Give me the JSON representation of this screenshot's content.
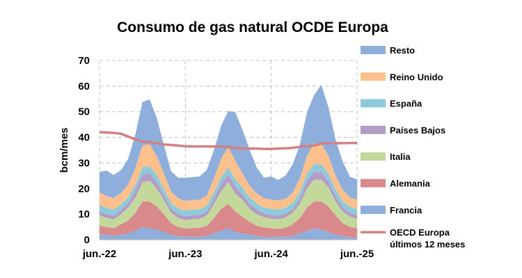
{
  "chart_data": {
    "type": "area",
    "title": "Consumo de gas natural OCDE Europa",
    "xlabel": "",
    "ylabel": "bcm/mes",
    "ylim": [
      0,
      70
    ],
    "yticks": [
      0,
      10,
      20,
      30,
      40,
      50,
      60,
      70
    ],
    "xticks": [
      {
        "index": 0,
        "label": "jun.-22"
      },
      {
        "index": 12,
        "label": "jun.-23"
      },
      {
        "index": 24,
        "label": "jun.-24"
      },
      {
        "index": 36,
        "label": "jun.-25"
      }
    ],
    "grid": true,
    "legend_position": "right",
    "x": [
      "jun.-22",
      "jul.-22",
      "ago.-22",
      "sep.-22",
      "oct.-22",
      "nov.-22",
      "dic.-22",
      "ene.-23",
      "feb.-23",
      "mar.-23",
      "abr.-23",
      "may.-23",
      "jun.-23",
      "jul.-23",
      "ago.-23",
      "sep.-23",
      "oct.-23",
      "nov.-23",
      "dic.-23",
      "ene.-24",
      "feb.-24",
      "mar.-24",
      "abr.-24",
      "may.-24",
      "jun.-24",
      "jul.-24",
      "ago.-24",
      "sep.-24",
      "oct.-24",
      "nov.-24",
      "dic.-24",
      "ene.-25",
      "feb.-25",
      "mar.-25",
      "abr.-25",
      "may.-25",
      "jun.-25"
    ],
    "stack_order": "bottom-to-top",
    "series": [
      {
        "name": "Francia",
        "color": "#8eaedc",
        "values": [
          2,
          2,
          1.5,
          2,
          2.5,
          3.5,
          5,
          4.5,
          4,
          3,
          2,
          1.5,
          1.2,
          1.2,
          1.2,
          1.5,
          2.5,
          3.5,
          4.5,
          3,
          2.5,
          2,
          1.5,
          1,
          1.2,
          1,
          1.2,
          1.5,
          2.5,
          3.5,
          4.5,
          4,
          3,
          2,
          1.5,
          1,
          1
        ]
      },
      {
        "name": "Alemania",
        "color": "#d9898b",
        "values": [
          3.5,
          3,
          3,
          4,
          5,
          7,
          10,
          10.5,
          9,
          7,
          4.5,
          3.5,
          3.2,
          3.3,
          3.5,
          4,
          6,
          8.5,
          9.5,
          8,
          6.5,
          5,
          4,
          3.8,
          3.3,
          3.3,
          3.5,
          4.5,
          6,
          9,
          10.5,
          11,
          10,
          7.5,
          5,
          4,
          3.5
        ]
      },
      {
        "name": "Italia",
        "color": "#c5d89c",
        "values": [
          4,
          3.5,
          3.5,
          4,
          5,
          6,
          7.5,
          8,
          7,
          5.5,
          4,
          3.5,
          3.3,
          3.5,
          3.5,
          4,
          5.5,
          7,
          8.5,
          7,
          6.5,
          5,
          4.5,
          4,
          3.7,
          3.7,
          4,
          4.5,
          5.5,
          7.5,
          8.5,
          8.5,
          7.5,
          5.5,
          4.5,
          4,
          3.7
        ]
      },
      {
        "name": "Países Bajos",
        "color": "#b49cc8",
        "values": [
          1.5,
          1.5,
          1.5,
          1.5,
          1.8,
          2.5,
          3,
          3,
          2.5,
          2,
          1.5,
          1.5,
          1.5,
          1.5,
          1.5,
          1.5,
          2,
          2.8,
          3,
          2.8,
          2.2,
          2,
          1.7,
          1.5,
          1.5,
          1.5,
          1.5,
          1.5,
          2,
          3,
          3,
          3,
          2.5,
          2,
          1.6,
          1.5,
          1.5
        ]
      },
      {
        "name": "España",
        "color": "#8dcbdb",
        "values": [
          2.5,
          2.5,
          2.3,
          2.2,
          2.3,
          2.5,
          2.8,
          2.8,
          2.7,
          2.5,
          2.3,
          2.2,
          2.2,
          2.2,
          2.2,
          2.3,
          2.5,
          2.7,
          2.8,
          2.7,
          2.6,
          2.5,
          2.4,
          2.3,
          2.4,
          2.3,
          2.3,
          2.4,
          2.6,
          2.8,
          3,
          3,
          2.8,
          2.6,
          2.4,
          2.3,
          2.3
        ]
      },
      {
        "name": "Reino Unido",
        "color": "#fcc08c",
        "values": [
          5,
          4.5,
          4.5,
          4.5,
          5,
          6.5,
          8.5,
          8.5,
          7.5,
          6,
          4.5,
          4,
          3.8,
          3.8,
          3.8,
          4,
          5.5,
          7,
          8,
          7.2,
          5.5,
          4.5,
          4,
          3.6,
          3.6,
          3.6,
          3.6,
          4,
          5.5,
          7,
          8,
          8,
          7,
          5.5,
          4.5,
          3.8,
          3.6
        ]
      },
      {
        "name": "Resto",
        "color": "#8eaedc",
        "values": [
          8,
          10,
          9,
          9,
          10,
          13,
          17,
          17.5,
          15,
          11,
          8,
          8,
          9,
          9,
          9,
          10,
          11,
          13,
          14,
          19,
          17,
          14,
          10,
          8,
          9,
          8,
          9,
          11,
          13,
          17,
          19,
          23,
          19,
          14,
          11,
          8,
          8
        ]
      }
    ],
    "line_series": {
      "name": "OECD Europa últimos 12 meses",
      "color": "#d38083",
      "values": [
        42,
        41.9,
        41.7,
        41.4,
        40.3,
        39.2,
        38.4,
        38.1,
        37.7,
        37.2,
        37,
        36.8,
        36.5,
        36.4,
        36.4,
        36.4,
        36.4,
        36.4,
        36.2,
        35.9,
        35.7,
        35.6,
        35.6,
        35.5,
        35.5,
        35.6,
        35.7,
        35.9,
        36.3,
        36.6,
        36.8,
        37.6,
        37.7,
        37.7,
        37.7,
        37.8,
        37.8
      ]
    }
  }
}
